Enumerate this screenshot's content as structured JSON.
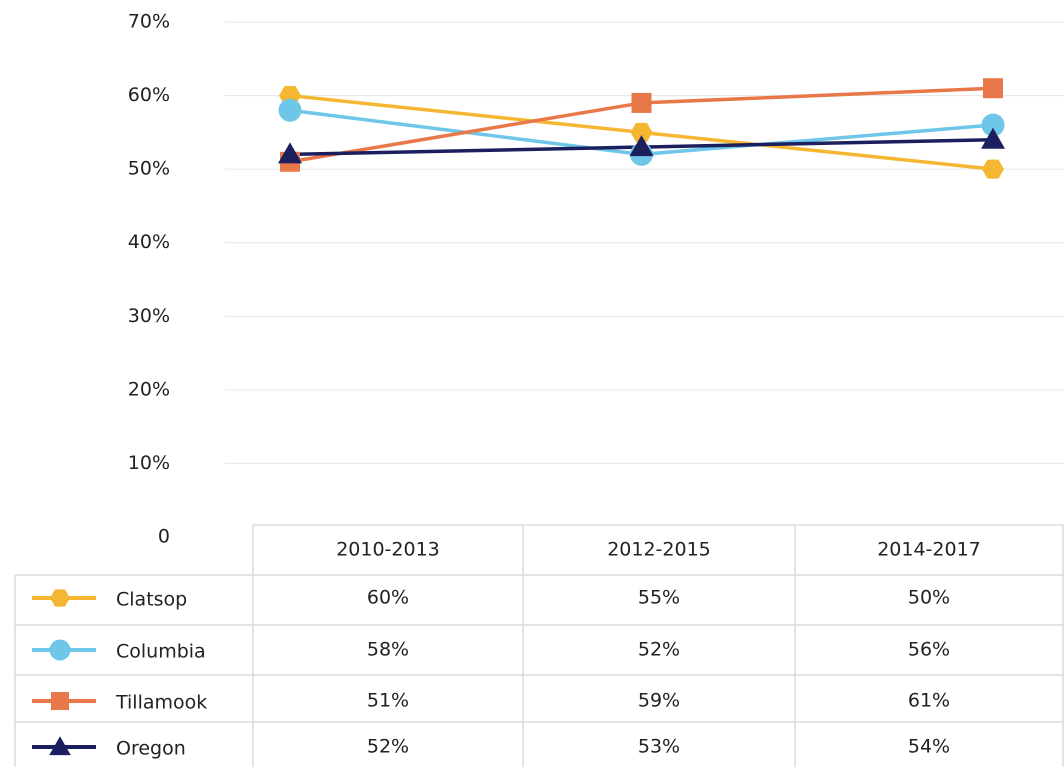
{
  "chart_data": {
    "type": "line",
    "categories": [
      "2010-2013",
      "2012-2015",
      "2014-2017"
    ],
    "series": [
      {
        "name": "Clatsop",
        "color": "#f5b731",
        "marker": "hexagon",
        "values": [
          60,
          55,
          50
        ],
        "value_labels": [
          "60%",
          "55%",
          "50%"
        ]
      },
      {
        "name": "Columbia",
        "color": "#6ec6e8",
        "marker": "circle",
        "values": [
          58,
          52,
          56
        ],
        "value_labels": [
          "58%",
          "52%",
          "56%"
        ]
      },
      {
        "name": "Tillamook",
        "color": "#e8774a",
        "marker": "square",
        "values": [
          51,
          59,
          61
        ],
        "value_labels": [
          "51%",
          "59%",
          "61%"
        ]
      },
      {
        "name": "Oregon",
        "color": "#1c1f5e",
        "marker": "triangle",
        "values": [
          52,
          53,
          54
        ],
        "value_labels": [
          "52%",
          "53%",
          "54%"
        ]
      }
    ],
    "ylim": [
      0,
      70
    ],
    "yticks": [
      0,
      {
        "value": 10,
        "label": "10%"
      },
      {
        "value": 20,
        "label": "20%"
      },
      {
        "value": 30,
        "label": "30%"
      },
      {
        "value": 40,
        "label": "40%"
      },
      {
        "value": 50,
        "label": "50%"
      },
      {
        "value": 60,
        "label": "60%"
      },
      {
        "value": 70,
        "label": "70%"
      }
    ],
    "grid": true
  }
}
